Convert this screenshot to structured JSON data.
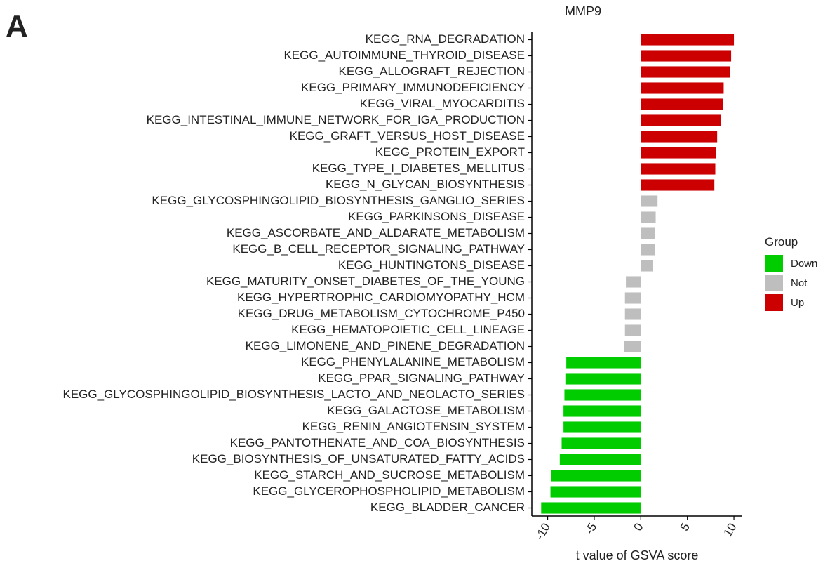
{
  "chart_data": {
    "type": "bar",
    "orientation": "horizontal",
    "panel_label": "A",
    "title": "MMP9",
    "x_label": "t value of GSVA score",
    "legend_title": "Group",
    "categories": [
      "KEGG_RNA_DEGRADATION",
      "KEGG_AUTOIMMUNE_THYROID_DISEASE",
      "KEGG_ALLOGRAFT_REJECTION",
      "KEGG_PRIMARY_IMMUNODEFICIENCY",
      "KEGG_VIRAL_MYOCARDITIS",
      "KEGG_INTESTINAL_IMMUNE_NETWORK_FOR_IGA_PRODUCTION",
      "KEGG_GRAFT_VERSUS_HOST_DISEASE",
      "KEGG_PROTEIN_EXPORT",
      "KEGG_TYPE_I_DIABETES_MELLITUS",
      "KEGG_N_GLYCAN_BIOSYNTHESIS",
      "KEGG_GLYCOSPHINGOLIPID_BIOSYNTHESIS_GANGLIO_SERIES",
      "KEGG_PARKINSONS_DISEASE",
      "KEGG_ASCORBATE_AND_ALDARATE_METABOLISM",
      "KEGG_B_CELL_RECEPTOR_SIGNALING_PATHWAY",
      "KEGG_HUNTINGTONS_DISEASE",
      "KEGG_MATURITY_ONSET_DIABETES_OF_THE_YOUNG",
      "KEGG_HYPERTROPHIC_CARDIOMYOPATHY_HCM",
      "KEGG_DRUG_METABOLISM_CYTOCHROME_P450",
      "KEGG_HEMATOPOIETIC_CELL_LINEAGE",
      "KEGG_LIMONENE_AND_PINENE_DEGRADATION",
      "KEGG_PHENYLALANINE_METABOLISM",
      "KEGG_PPAR_SIGNALING_PATHWAY",
      "KEGG_GLYCOSPHINGOLIPID_BIOSYNTHESIS_LACTO_AND_NEOLACTO_SERIES",
      "KEGG_GALACTOSE_METABOLISM",
      "KEGG_RENIN_ANGIOTENSIN_SYSTEM",
      "KEGG_PANTOTHENATE_AND_COA_BIOSYNTHESIS",
      "KEGG_BIOSYNTHESIS_OF_UNSATURATED_FATTY_ACIDS",
      "KEGG_STARCH_AND_SUCROSE_METABOLISM",
      "KEGG_GLYCEROPHOSPHOLIPID_METABOLISM",
      "KEGG_BLADDER_CANCER"
    ],
    "series": [
      {
        "name": "Down",
        "color": "#00cc00",
        "values": [
          null,
          null,
          null,
          null,
          null,
          null,
          null,
          null,
          null,
          null,
          null,
          null,
          null,
          null,
          null,
          null,
          null,
          null,
          null,
          null,
          -8.0,
          -8.1,
          -8.2,
          -8.3,
          -8.3,
          -8.5,
          -8.7,
          -9.6,
          -9.7,
          -10.7
        ]
      },
      {
        "name": "Not",
        "color": "#bebebe",
        "values": [
          null,
          null,
          null,
          null,
          null,
          null,
          null,
          null,
          null,
          null,
          1.8,
          1.6,
          1.5,
          1.5,
          1.3,
          -1.6,
          -1.7,
          -1.7,
          -1.7,
          -1.8,
          null,
          null,
          null,
          null,
          null,
          null,
          null,
          null,
          null,
          null
        ]
      },
      {
        "name": "Up",
        "color": "#cc0000",
        "values": [
          10.0,
          9.7,
          9.6,
          8.9,
          8.8,
          8.6,
          8.2,
          8.1,
          8.0,
          7.9,
          null,
          null,
          null,
          null,
          null,
          null,
          null,
          null,
          null,
          null,
          null,
          null,
          null,
          null,
          null,
          null,
          null,
          null,
          null,
          null
        ]
      }
    ],
    "xlim": [
      -11.7,
      10.9
    ],
    "xticks": [
      -10,
      -5,
      0,
      5,
      10
    ],
    "grid": false
  }
}
